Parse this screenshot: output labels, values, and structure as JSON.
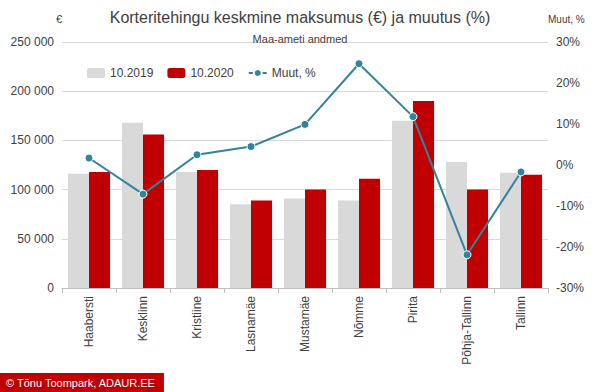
{
  "chart_data": {
    "type": "bar",
    "title": "Korteritehingu keskmine maksumus (€) ja muutus (%)",
    "subtitle": "Maa-ameti andmed",
    "y_label": "€",
    "y2_label": "Muut, %",
    "annotations": [
      "© Tõnu Toompark, ADAUR.EE"
    ],
    "categories": [
      "Haabersti",
      "Kesklinn",
      "Kristiine",
      "Lasnamäe",
      "Mustamäe",
      "Nõmme",
      "Pirita",
      "Põhja-Tallinn",
      "Tallinn"
    ],
    "series": [
      {
        "name": "10.2019",
        "type": "bar",
        "color": "#d9d9d9",
        "values": [
          116000,
          168000,
          118000,
          85000,
          91000,
          89000,
          170000,
          128000,
          117000
        ]
      },
      {
        "name": "10.2020",
        "type": "bar",
        "color": "#c00000",
        "values": [
          118000,
          156000,
          120000,
          89000,
          100000,
          111000,
          190000,
          100000,
          115000
        ]
      },
      {
        "name": "Muut, %",
        "type": "line",
        "axis": "y2",
        "color": "#31849b",
        "marker": "circle",
        "values": [
          1.7,
          -7.1,
          2.5,
          4.5,
          9.9,
          24.7,
          11.8,
          -21.9,
          -1.7
        ]
      }
    ],
    "ylim": [
      0,
      250000
    ],
    "yticks": [
      0,
      {
        "value": 50000,
        "label": "50 000"
      },
      {
        "value": 100000,
        "label": "100 000"
      },
      {
        "value": 150000,
        "label": "150 000"
      },
      {
        "value": 200000,
        "label": "200 000"
      },
      {
        "value": 250000,
        "label": "250 000"
      }
    ],
    "y2lim": [
      -30,
      30
    ],
    "y2ticks": [
      {
        "value": -30,
        "label": "-30%"
      },
      {
        "value": -20,
        "label": "-20%"
      },
      {
        "value": -10,
        "label": "-10%"
      },
      {
        "value": 0,
        "label": "0%"
      },
      {
        "value": 10,
        "label": "10%"
      },
      {
        "value": 20,
        "label": "20%"
      },
      {
        "value": 30,
        "label": "30%"
      }
    ],
    "grid": true,
    "legend": "top-left"
  }
}
